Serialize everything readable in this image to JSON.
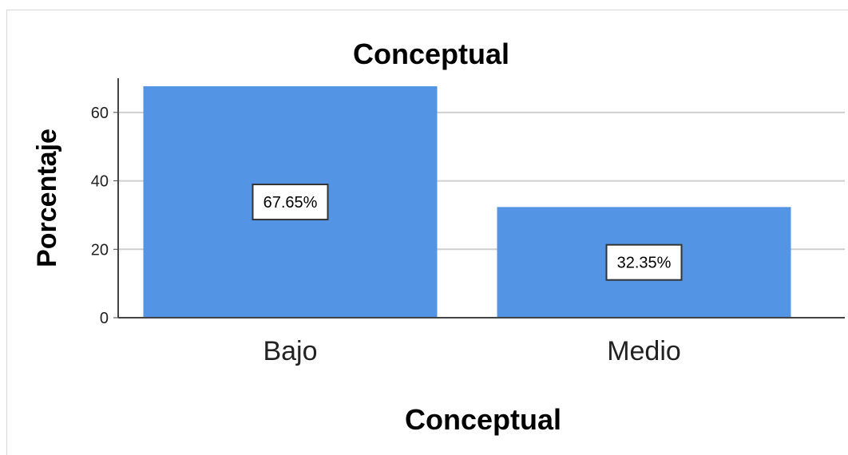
{
  "chart_data": {
    "type": "bar",
    "title": "Conceptual",
    "xlabel": "Conceptual",
    "ylabel": "Porcentaje",
    "categories": [
      "Bajo",
      "Medio"
    ],
    "values": [
      67.65,
      32.35
    ],
    "data_labels": [
      "67.65%",
      "32.35%"
    ],
    "yticks": [
      "0",
      "20",
      "40",
      "60"
    ],
    "ylim": [
      0,
      70
    ],
    "grid": true,
    "legend": "none",
    "colors": {
      "bar": "#5494e4",
      "grid": "#cfcfcf",
      "axis": "#444444"
    }
  }
}
